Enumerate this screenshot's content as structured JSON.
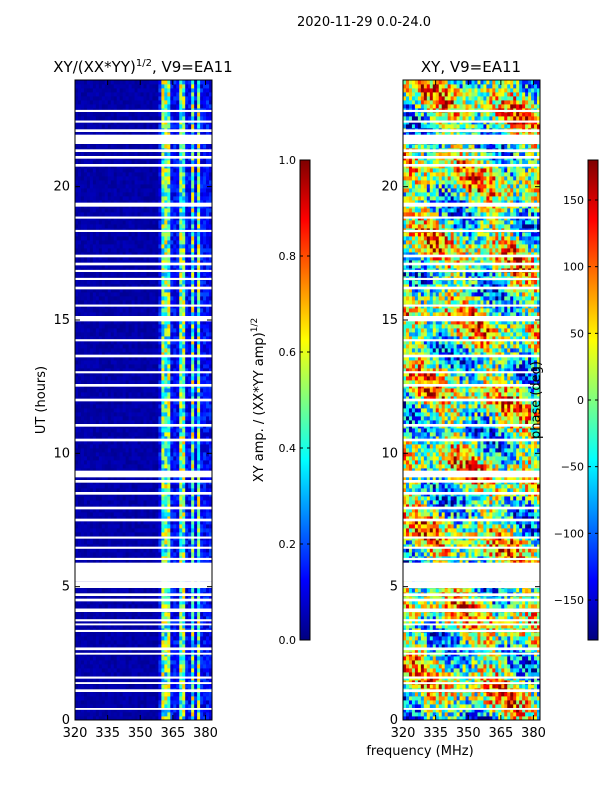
{
  "suptitle": "2020-11-29 0.0-24.0",
  "shared_xlabel": "frequency (MHz)",
  "colors": {
    "background": "#ffffff",
    "gap": "#ffffff",
    "jet": [
      "#00007f",
      "#0000ff",
      "#007fff",
      "#00ffff",
      "#7fff7f",
      "#ffff00",
      "#ff7f00",
      "#ff0000",
      "#7f0000"
    ]
  },
  "chart_data": [
    {
      "id": "amp",
      "type": "heatmap",
      "title": "XY/(XX*YY)",
      "title_exp": "1/2",
      "title_suffix": ", V9=EA11",
      "xlabel": "",
      "ylabel": "UT (hours)",
      "xlim": [
        320,
        383
      ],
      "ylim": [
        0,
        24
      ],
      "xticks": [
        320,
        335,
        350,
        365,
        380
      ],
      "yticks": [
        0,
        5,
        10,
        15,
        20
      ],
      "flag_bands_mhz": [
        [
          359.5,
          363.5
        ],
        [
          368.5,
          370.5
        ],
        [
          373.5,
          374.5
        ],
        [
          375.5,
          377
        ],
        [
          378.5,
          379.5
        ]
      ],
      "gaps_hours": [
        [
          0.38,
          0.45
        ],
        [
          1.05,
          1.15
        ],
        [
          1.35,
          1.42
        ],
        [
          1.55,
          1.63
        ],
        [
          2.45,
          2.52
        ],
        [
          2.62,
          2.72
        ],
        [
          3.3,
          3.38
        ],
        [
          3.55,
          3.62
        ],
        [
          3.7,
          3.78
        ],
        [
          4.05,
          4.18
        ],
        [
          4.45,
          4.55
        ],
        [
          4.65,
          4.75
        ],
        [
          4.95,
          5.2
        ],
        [
          5.2,
          5.9
        ],
        [
          6.0,
          6.08
        ],
        [
          6.42,
          6.5
        ],
        [
          6.8,
          6.88
        ],
        [
          7.45,
          7.55
        ],
        [
          7.9,
          8.0
        ],
        [
          8.45,
          8.55
        ],
        [
          8.9,
          9.0
        ],
        [
          9.1,
          9.35
        ],
        [
          10.45,
          10.55
        ],
        [
          11.0,
          11.1
        ],
        [
          11.95,
          12.05
        ],
        [
          12.5,
          12.6
        ],
        [
          13.0,
          13.08
        ],
        [
          13.6,
          13.7
        ],
        [
          14.2,
          14.28
        ],
        [
          14.95,
          15.15
        ],
        [
          15.5,
          15.58
        ],
        [
          16.15,
          16.25
        ],
        [
          16.5,
          16.58
        ],
        [
          16.8,
          16.88
        ],
        [
          17.05,
          17.15
        ],
        [
          17.35,
          17.45
        ],
        [
          18.3,
          18.38
        ],
        [
          18.8,
          18.88
        ],
        [
          19.25,
          19.4
        ],
        [
          20.75,
          20.85
        ],
        [
          21.05,
          21.15
        ],
        [
          21.3,
          21.4
        ],
        [
          21.6,
          21.95
        ],
        [
          22.05,
          22.15
        ],
        [
          22.4,
          22.48
        ],
        [
          22.8,
          22.88
        ]
      ]
    },
    {
      "id": "phase",
      "type": "heatmap",
      "title": "XY, V9=EA11",
      "xlabel": "frequency (MHz)",
      "ylabel": "",
      "xlim": [
        320,
        383
      ],
      "ylim": [
        0,
        24
      ],
      "xticks": [
        320,
        335,
        350,
        365,
        380
      ],
      "yticks": [
        0,
        5,
        10,
        15,
        20
      ],
      "gaps_hours": [
        [
          0.38,
          0.45
        ],
        [
          1.05,
          1.15
        ],
        [
          1.35,
          1.42
        ],
        [
          1.55,
          1.63
        ],
        [
          2.45,
          2.52
        ],
        [
          2.62,
          2.72
        ],
        [
          3.3,
          3.38
        ],
        [
          3.55,
          3.62
        ],
        [
          3.7,
          3.78
        ],
        [
          4.05,
          4.18
        ],
        [
          4.45,
          4.55
        ],
        [
          4.65,
          4.75
        ],
        [
          4.95,
          5.2
        ],
        [
          5.2,
          5.9
        ],
        [
          6.0,
          6.08
        ],
        [
          6.42,
          6.5
        ],
        [
          6.8,
          6.88
        ],
        [
          7.45,
          7.55
        ],
        [
          7.9,
          8.0
        ],
        [
          8.45,
          8.55
        ],
        [
          8.9,
          9.0
        ],
        [
          9.1,
          9.35
        ],
        [
          10.45,
          10.55
        ],
        [
          11.0,
          11.1
        ],
        [
          11.95,
          12.05
        ],
        [
          12.5,
          12.6
        ],
        [
          13.0,
          13.08
        ],
        [
          13.6,
          13.7
        ],
        [
          14.2,
          14.28
        ],
        [
          14.95,
          15.15
        ],
        [
          15.5,
          15.58
        ],
        [
          16.15,
          16.25
        ],
        [
          16.5,
          16.58
        ],
        [
          16.8,
          16.88
        ],
        [
          17.05,
          17.15
        ],
        [
          17.35,
          17.45
        ],
        [
          18.3,
          18.38
        ],
        [
          18.8,
          18.88
        ],
        [
          19.25,
          19.4
        ],
        [
          20.75,
          20.85
        ],
        [
          21.05,
          21.15
        ],
        [
          21.3,
          21.4
        ],
        [
          21.6,
          21.95
        ],
        [
          22.05,
          22.15
        ],
        [
          22.4,
          22.48
        ],
        [
          22.8,
          22.88
        ]
      ]
    }
  ],
  "colorbars": [
    {
      "id": "amp_cbar",
      "label": "XY amp. / (XX*YY amp)",
      "label_exp": "1/2",
      "range": [
        0,
        1
      ],
      "ticks": [
        "0.0",
        "0.2",
        "0.4",
        "0.6",
        "0.8",
        "1.0"
      ],
      "tick_values": [
        0,
        0.2,
        0.4,
        0.6,
        0.8,
        1.0
      ]
    },
    {
      "id": "phase_cbar",
      "label": "phase (deg)",
      "range": [
        -180,
        180
      ],
      "ticks": [
        "−150",
        "−100",
        "−50",
        "0",
        "50",
        "100",
        "150"
      ],
      "tick_values": [
        -150,
        -100,
        -50,
        0,
        50,
        100,
        150
      ]
    }
  ]
}
